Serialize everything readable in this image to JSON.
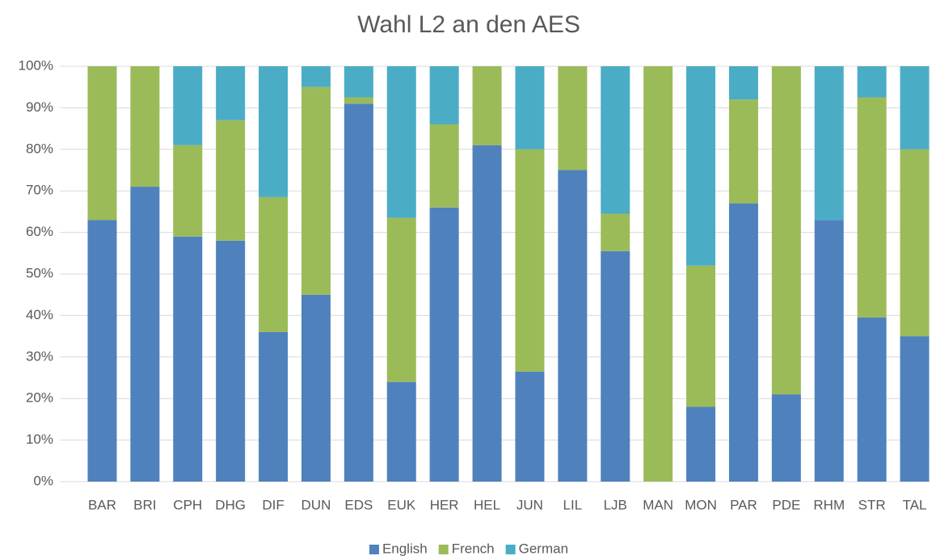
{
  "chart_data": {
    "type": "stacked_bar",
    "title": "Wahl L2 an den AES",
    "categories": [
      "BAR",
      "BRI",
      "CPH",
      "DHG",
      "DIF",
      "DUN",
      "EDS",
      "EUK",
      "HER",
      "HEL",
      "JUN",
      "LIL",
      "LJB",
      "MAN",
      "MON",
      "PAR",
      "PDE",
      "RHM",
      "STR",
      "TAL"
    ],
    "series": [
      {
        "name": "English",
        "color": "#4f81bd",
        "values": [
          63,
          71,
          59,
          58,
          36,
          45,
          91,
          24,
          66,
          81,
          26.5,
          75,
          55.5,
          0,
          18,
          67,
          21,
          63,
          39.5,
          35
        ]
      },
      {
        "name": "French",
        "color": "#9bbb59",
        "values": [
          37,
          29,
          22,
          29,
          32.5,
          50,
          1.5,
          39.5,
          20,
          19,
          53.5,
          25,
          9,
          100,
          34,
          25,
          79,
          0,
          53,
          45
        ]
      },
      {
        "name": "German",
        "color": "#4bacc6",
        "values": [
          0,
          0,
          19,
          13,
          31.5,
          5,
          7.5,
          36.5,
          14,
          0,
          20,
          0,
          35.5,
          0,
          48,
          8,
          0,
          37,
          7.5,
          20
        ]
      }
    ],
    "ylim": [
      0,
      100
    ],
    "yticks": [
      {
        "value": 0,
        "label": "0%"
      },
      {
        "value": 10,
        "label": "10%"
      },
      {
        "value": 20,
        "label": "20%"
      },
      {
        "value": 30,
        "label": "30%"
      },
      {
        "value": 40,
        "label": "40%"
      },
      {
        "value": 50,
        "label": "50%"
      },
      {
        "value": 60,
        "label": "60%"
      },
      {
        "value": 70,
        "label": "70%"
      },
      {
        "value": 80,
        "label": "80%"
      },
      {
        "value": 90,
        "label": "90%"
      },
      {
        "value": 100,
        "label": "100%"
      }
    ],
    "grid": true,
    "legend": "bottom"
  }
}
